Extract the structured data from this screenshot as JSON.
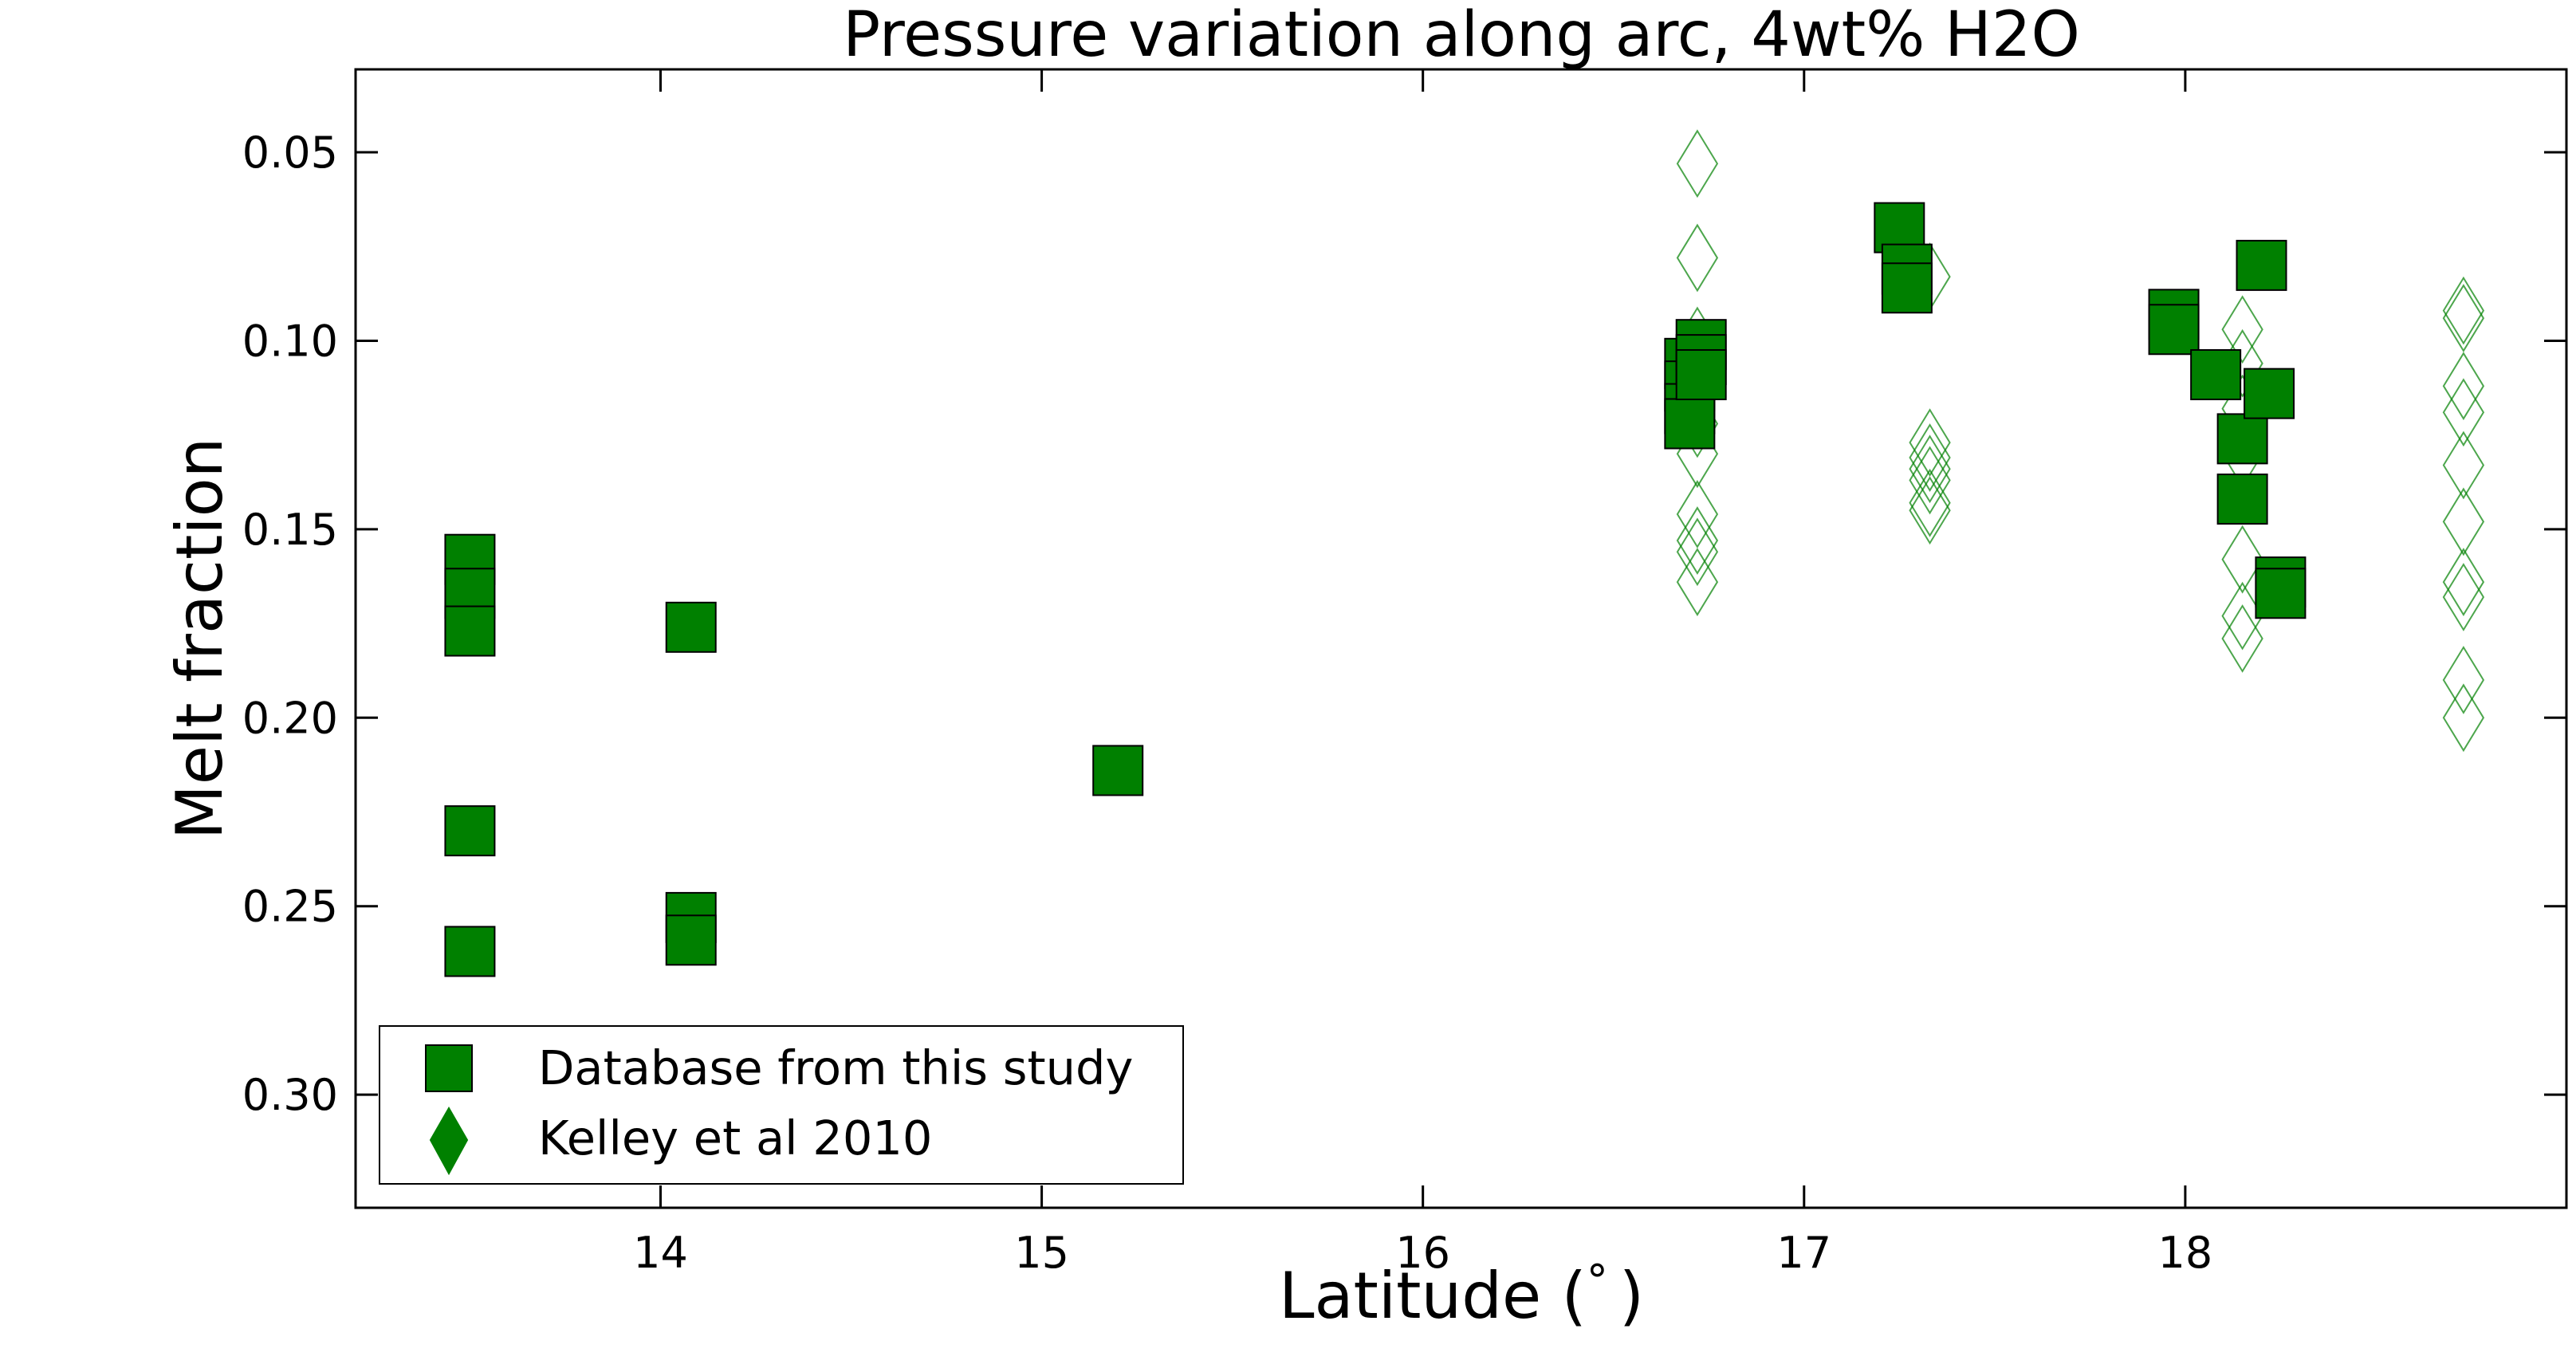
{
  "chart_data": {
    "type": "scatter",
    "title": "Pressure variation along arc, 4wt% H2O",
    "xlabel": "Latitude (",
    "xlabel_symbol": "°",
    "xlabel_close": ")",
    "ylabel": "Melt fraction",
    "xlim": [
      13.2,
      19.0
    ],
    "ylim": [
      0.33,
      0.028
    ],
    "y_inverted": true,
    "grid": false,
    "legend_position": "bottom-left",
    "xticks": [
      {
        "value": 14,
        "label": "14"
      },
      {
        "value": 15,
        "label": "15"
      },
      {
        "value": 16,
        "label": "16"
      },
      {
        "value": 17,
        "label": "17"
      },
      {
        "value": 18,
        "label": "18"
      }
    ],
    "yticks": [
      {
        "value": 0.05,
        "label": "0.05"
      },
      {
        "value": 0.1,
        "label": "0.10"
      },
      {
        "value": 0.15,
        "label": "0.15"
      },
      {
        "value": 0.2,
        "label": "0.20"
      },
      {
        "value": 0.25,
        "label": "0.25"
      },
      {
        "value": 0.3,
        "label": "0.30"
      }
    ],
    "series": [
      {
        "name": "Database from this study",
        "marker": "square",
        "filled": true,
        "color": "#008000",
        "edge_color": "#000000",
        "points": [
          {
            "x": 13.5,
            "y": 0.158
          },
          {
            "x": 13.5,
            "y": 0.167
          },
          {
            "x": 13.5,
            "y": 0.177
          },
          {
            "x": 13.5,
            "y": 0.23
          },
          {
            "x": 13.5,
            "y": 0.262
          },
          {
            "x": 14.08,
            "y": 0.176
          },
          {
            "x": 14.08,
            "y": 0.253
          },
          {
            "x": 14.08,
            "y": 0.259
          },
          {
            "x": 15.2,
            "y": 0.214
          },
          {
            "x": 16.7,
            "y": 0.106
          },
          {
            "x": 16.7,
            "y": 0.112
          },
          {
            "x": 16.7,
            "y": 0.118
          },
          {
            "x": 16.7,
            "y": 0.122
          },
          {
            "x": 16.73,
            "y": 0.101
          },
          {
            "x": 16.73,
            "y": 0.105
          },
          {
            "x": 16.73,
            "y": 0.109
          },
          {
            "x": 17.25,
            "y": 0.07
          },
          {
            "x": 17.27,
            "y": 0.081
          },
          {
            "x": 17.27,
            "y": 0.086
          },
          {
            "x": 17.97,
            "y": 0.093
          },
          {
            "x": 17.97,
            "y": 0.097
          },
          {
            "x": 18.08,
            "y": 0.109
          },
          {
            "x": 18.15,
            "y": 0.126
          },
          {
            "x": 18.15,
            "y": 0.142
          },
          {
            "x": 18.2,
            "y": 0.08
          },
          {
            "x": 18.22,
            "y": 0.114
          },
          {
            "x": 18.25,
            "y": 0.164
          },
          {
            "x": 18.25,
            "y": 0.167
          }
        ]
      },
      {
        "name": "Kelley et al 2010",
        "marker": "diamond",
        "filled": false,
        "color": "#008000",
        "points": [
          {
            "x": 16.72,
            "y": 0.053
          },
          {
            "x": 16.72,
            "y": 0.078
          },
          {
            "x": 16.72,
            "y": 0.1
          },
          {
            "x": 16.72,
            "y": 0.11
          },
          {
            "x": 16.72,
            "y": 0.122
          },
          {
            "x": 16.72,
            "y": 0.13
          },
          {
            "x": 16.72,
            "y": 0.146
          },
          {
            "x": 16.72,
            "y": 0.153
          },
          {
            "x": 16.72,
            "y": 0.156
          },
          {
            "x": 16.72,
            "y": 0.164
          },
          {
            "x": 17.33,
            "y": 0.083
          },
          {
            "x": 17.33,
            "y": 0.127
          },
          {
            "x": 17.33,
            "y": 0.131
          },
          {
            "x": 17.33,
            "y": 0.134
          },
          {
            "x": 17.33,
            "y": 0.137
          },
          {
            "x": 17.33,
            "y": 0.143
          },
          {
            "x": 17.33,
            "y": 0.145
          },
          {
            "x": 18.15,
            "y": 0.097
          },
          {
            "x": 18.15,
            "y": 0.106
          },
          {
            "x": 18.15,
            "y": 0.118
          },
          {
            "x": 18.15,
            "y": 0.13
          },
          {
            "x": 18.15,
            "y": 0.158
          },
          {
            "x": 18.15,
            "y": 0.173
          },
          {
            "x": 18.15,
            "y": 0.179
          },
          {
            "x": 18.73,
            "y": 0.092
          },
          {
            "x": 18.73,
            "y": 0.094
          },
          {
            "x": 18.73,
            "y": 0.112
          },
          {
            "x": 18.73,
            "y": 0.119
          },
          {
            "x": 18.73,
            "y": 0.133
          },
          {
            "x": 18.73,
            "y": 0.148
          },
          {
            "x": 18.73,
            "y": 0.164
          },
          {
            "x": 18.73,
            "y": 0.168
          },
          {
            "x": 18.73,
            "y": 0.19
          },
          {
            "x": 18.73,
            "y": 0.2
          }
        ]
      }
    ]
  }
}
